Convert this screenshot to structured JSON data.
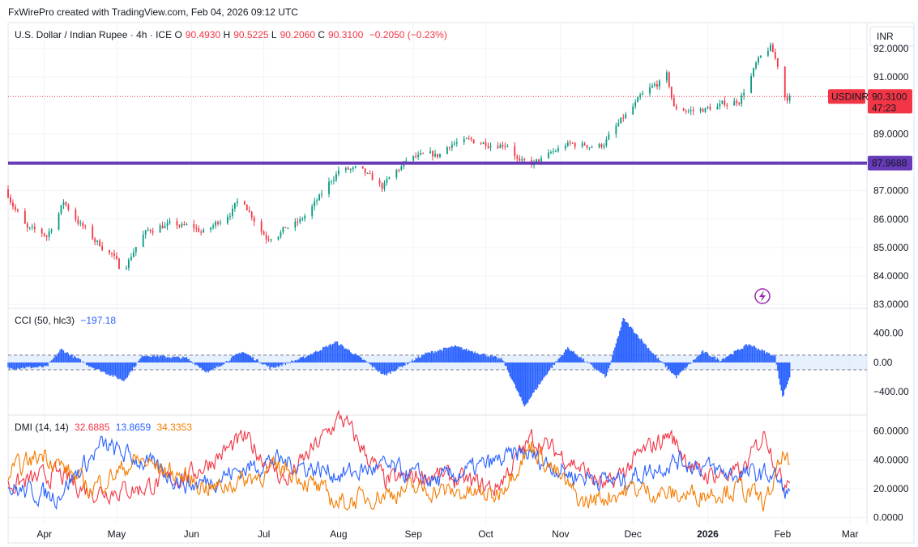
{
  "header": {
    "credit": "FxWirePro created with TradingView.com, Feb 04, 2026 09:12 UTC"
  },
  "colors": {
    "up": "#089981",
    "down": "#f23645",
    "level": "#673ab7",
    "cci": "#2962ff",
    "band": "#d7e6fb",
    "pos_di": "#f23645",
    "neg_di": "#2962ff",
    "adx": "#f57c00",
    "grid": "#f0f3fa",
    "border": "#e0e3eb"
  },
  "chart_data": [
    {
      "type": "candlestick",
      "name": "price",
      "legend": {
        "symbol": "U.S. Dollar / Indian Rupee · 4h · ICE",
        "o_label": "O",
        "o": "90.4930",
        "h_label": "H",
        "h": "90.5225",
        "l_label": "L",
        "l": "90.2060",
        "c_label": "C",
        "c": "90.3100",
        "change": "−0.2050 (−0.23%)"
      },
      "currency": "INR",
      "ylim": [
        82.95,
        92.85
      ],
      "yticks": [
        "92.0000",
        "91.0000",
        "89.0000",
        "87.0000",
        "86.0000",
        "85.0000",
        "84.0000",
        "83.0000"
      ],
      "xlim": [
        "2026-03-17",
        "2026-03-08"
      ],
      "x_dates": [
        "2025-03-17",
        "2026-03-08"
      ],
      "xticks": [
        {
          "label": "Apr",
          "date": "2025-04-01"
        },
        {
          "label": "May",
          "date": "2025-05-01"
        },
        {
          "label": "Jun",
          "date": "2025-06-01"
        },
        {
          "label": "Jul",
          "date": "2025-07-01"
        },
        {
          "label": "Aug",
          "date": "2025-08-01"
        },
        {
          "label": "Sep",
          "date": "2025-09-01"
        },
        {
          "label": "Oct",
          "date": "2025-10-01"
        },
        {
          "label": "Nov",
          "date": "2025-11-01"
        },
        {
          "label": "Dec",
          "date": "2025-12-01"
        },
        {
          "label": "2026",
          "date": "2026-01-01"
        },
        {
          "label": "Feb",
          "date": "2026-02-01"
        },
        {
          "label": "Mar",
          "date": "2026-03-01"
        }
      ],
      "anchors": [
        {
          "date": "2025-03-17",
          "price": 87.05
        },
        {
          "date": "2025-03-26",
          "price": 85.6
        },
        {
          "date": "2025-04-03",
          "price": 85.4
        },
        {
          "date": "2025-04-10",
          "price": 86.6
        },
        {
          "date": "2025-04-22",
          "price": 85.3
        },
        {
          "date": "2025-04-30",
          "price": 84.8
        },
        {
          "date": "2025-05-04",
          "price": 84.1
        },
        {
          "date": "2025-05-12",
          "price": 85.4
        },
        {
          "date": "2025-05-20",
          "price": 85.8
        },
        {
          "date": "2025-06-02",
          "price": 85.7
        },
        {
          "date": "2025-06-08",
          "price": 85.5
        },
        {
          "date": "2025-06-23",
          "price": 86.7
        },
        {
          "date": "2025-07-03",
          "price": 85.4
        },
        {
          "date": "2025-07-17",
          "price": 85.9
        },
        {
          "date": "2025-07-25",
          "price": 86.7
        },
        {
          "date": "2025-08-02",
          "price": 87.75
        },
        {
          "date": "2025-08-10",
          "price": 87.7
        },
        {
          "date": "2025-08-20",
          "price": 87.1
        },
        {
          "date": "2025-08-31",
          "price": 88.1
        },
        {
          "date": "2025-09-12",
          "price": 88.2
        },
        {
          "date": "2025-09-18",
          "price": 88.7
        },
        {
          "date": "2025-10-12",
          "price": 88.7
        },
        {
          "date": "2025-10-16",
          "price": 88.0
        },
        {
          "date": "2025-10-20",
          "price": 87.85
        },
        {
          "date": "2025-10-28",
          "price": 88.2
        },
        {
          "date": "2025-11-04",
          "price": 88.6
        },
        {
          "date": "2025-11-19",
          "price": 88.6
        },
        {
          "date": "2025-11-26",
          "price": 89.3
        },
        {
          "date": "2025-12-05",
          "price": 90.2
        },
        {
          "date": "2025-12-16",
          "price": 91.0
        },
        {
          "date": "2025-12-19",
          "price": 89.9
        },
        {
          "date": "2025-12-28",
          "price": 89.8
        },
        {
          "date": "2026-01-08",
          "price": 90.0
        },
        {
          "date": "2026-01-15",
          "price": 90.2
        },
        {
          "date": "2026-01-22",
          "price": 91.4
        },
        {
          "date": "2026-01-28",
          "price": 92.0
        },
        {
          "date": "2026-01-31",
          "price": 91.4
        },
        {
          "date": "2026-02-02",
          "price": 90.35
        },
        {
          "date": "2026-02-04",
          "price": 90.31
        }
      ],
      "level_line": {
        "value": 87.9688,
        "label": "87.9688"
      },
      "last_price": {
        "value": 90.31,
        "symbol": "USDINR",
        "price": "90.3100",
        "countdown": "47:23"
      }
    },
    {
      "type": "histogram",
      "name": "cci",
      "legend": {
        "title": "CCI (50, hlc3)",
        "value": "−197.18"
      },
      "ylim": [
        -630,
        640
      ],
      "band": [
        -100,
        100
      ],
      "yticks": [
        "400.00",
        "0.00",
        "−400.00"
      ],
      "anchors": [
        {
          "date": "2025-03-17",
          "v": -80
        },
        {
          "date": "2025-04-02",
          "v": -60
        },
        {
          "date": "2025-04-08",
          "v": 180
        },
        {
          "date": "2025-04-20",
          "v": -50
        },
        {
          "date": "2025-05-04",
          "v": -250
        },
        {
          "date": "2025-05-12",
          "v": 100
        },
        {
          "date": "2025-05-30",
          "v": 60
        },
        {
          "date": "2025-06-08",
          "v": -140
        },
        {
          "date": "2025-06-22",
          "v": 150
        },
        {
          "date": "2025-07-04",
          "v": -80
        },
        {
          "date": "2025-07-17",
          "v": 60
        },
        {
          "date": "2025-07-31",
          "v": 280
        },
        {
          "date": "2025-08-12",
          "v": 20
        },
        {
          "date": "2025-08-20",
          "v": -180
        },
        {
          "date": "2025-09-06",
          "v": 120
        },
        {
          "date": "2025-09-18",
          "v": 220
        },
        {
          "date": "2025-10-08",
          "v": 40
        },
        {
          "date": "2025-10-17",
          "v": -600
        },
        {
          "date": "2025-10-27",
          "v": -120
        },
        {
          "date": "2025-11-04",
          "v": 200
        },
        {
          "date": "2025-11-20",
          "v": -200
        },
        {
          "date": "2025-11-27",
          "v": 600
        },
        {
          "date": "2025-12-10",
          "v": 100
        },
        {
          "date": "2025-12-19",
          "v": -200
        },
        {
          "date": "2025-12-30",
          "v": 150
        },
        {
          "date": "2026-01-06",
          "v": 30
        },
        {
          "date": "2026-01-18",
          "v": 250
        },
        {
          "date": "2026-01-29",
          "v": 80
        },
        {
          "date": "2026-02-01",
          "v": -480
        },
        {
          "date": "2026-02-04",
          "v": -197
        }
      ]
    },
    {
      "type": "line",
      "name": "dmi",
      "legend": {
        "title": "DMI (14, 14)",
        "v1": "32.6885",
        "v2": "13.8659",
        "v3": "34.3353"
      },
      "ylim": [
        -3,
        66
      ],
      "yticks": [
        "60.0000",
        "40.0000",
        "20.0000",
        "0.0000"
      ],
      "series": [
        {
          "color_key": "pos_di",
          "anchors": [
            {
              "date": "2025-03-17",
              "v": 22
            },
            {
              "date": "2025-04-06",
              "v": 30
            },
            {
              "date": "2025-04-20",
              "v": 18
            },
            {
              "date": "2025-05-10",
              "v": 20
            },
            {
              "date": "2025-06-01",
              "v": 30
            },
            {
              "date": "2025-06-23",
              "v": 55
            },
            {
              "date": "2025-07-10",
              "v": 25
            },
            {
              "date": "2025-08-02",
              "v": 70
            },
            {
              "date": "2025-08-20",
              "v": 25
            },
            {
              "date": "2025-09-10",
              "v": 30
            },
            {
              "date": "2025-10-05",
              "v": 20
            },
            {
              "date": "2025-10-20",
              "v": 55
            },
            {
              "date": "2025-11-05",
              "v": 40
            },
            {
              "date": "2025-11-20",
              "v": 20
            },
            {
              "date": "2025-12-05",
              "v": 45
            },
            {
              "date": "2025-12-16",
              "v": 58
            },
            {
              "date": "2025-12-28",
              "v": 30
            },
            {
              "date": "2026-01-15",
              "v": 30
            },
            {
              "date": "2026-01-25",
              "v": 60
            },
            {
              "date": "2026-02-01",
              "v": 22
            },
            {
              "date": "2026-02-04",
              "v": 32.7
            }
          ]
        },
        {
          "color_key": "neg_di",
          "anchors": [
            {
              "date": "2025-03-17",
              "v": 20
            },
            {
              "date": "2025-04-06",
              "v": 15
            },
            {
              "date": "2025-04-25",
              "v": 50
            },
            {
              "date": "2025-05-10",
              "v": 40
            },
            {
              "date": "2025-06-01",
              "v": 22
            },
            {
              "date": "2025-07-05",
              "v": 40
            },
            {
              "date": "2025-08-02",
              "v": 30
            },
            {
              "date": "2025-08-20",
              "v": 35
            },
            {
              "date": "2025-09-10",
              "v": 25
            },
            {
              "date": "2025-10-17",
              "v": 45
            },
            {
              "date": "2025-11-05",
              "v": 30
            },
            {
              "date": "2025-11-25",
              "v": 25
            },
            {
              "date": "2025-12-20",
              "v": 40
            },
            {
              "date": "2026-01-10",
              "v": 30
            },
            {
              "date": "2026-01-28",
              "v": 30
            },
            {
              "date": "2026-02-04",
              "v": 13.9
            }
          ]
        },
        {
          "color_key": "adx",
          "anchors": [
            {
              "date": "2025-03-17",
              "v": 30
            },
            {
              "date": "2025-04-01",
              "v": 45
            },
            {
              "date": "2025-04-20",
              "v": 20
            },
            {
              "date": "2025-05-10",
              "v": 40
            },
            {
              "date": "2025-06-10",
              "v": 20
            },
            {
              "date": "2025-07-10",
              "v": 35
            },
            {
              "date": "2025-08-01",
              "v": 10
            },
            {
              "date": "2025-09-01",
              "v": 20
            },
            {
              "date": "2025-10-05",
              "v": 15
            },
            {
              "date": "2025-10-20",
              "v": 50
            },
            {
              "date": "2025-11-10",
              "v": 10
            },
            {
              "date": "2025-12-01",
              "v": 20
            },
            {
              "date": "2025-12-20",
              "v": 15
            },
            {
              "date": "2026-01-15",
              "v": 20
            },
            {
              "date": "2026-01-25",
              "v": 10
            },
            {
              "date": "2026-02-02",
              "v": 45
            },
            {
              "date": "2026-02-04",
              "v": 34.3
            }
          ]
        }
      ]
    }
  ]
}
